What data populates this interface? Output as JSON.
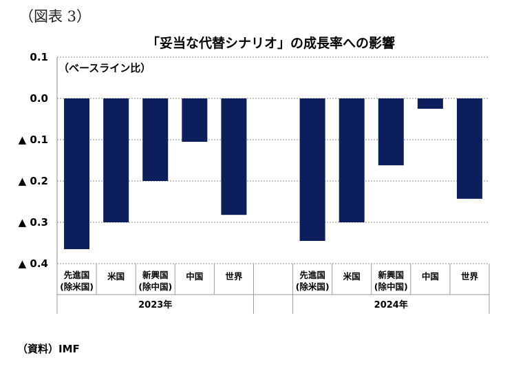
{
  "figure_label": "（図表 3）",
  "source": "（資料）IMF",
  "chart_data": {
    "type": "bar",
    "title": "「妥当な代替シナリオ」の成長率への影響",
    "unit_note": "（ベースライン比）",
    "ylim": [
      -0.4,
      0.1
    ],
    "y_ticks": [
      {
        "value": 0.1,
        "label": "0.1"
      },
      {
        "value": 0.0,
        "label": "0.0"
      },
      {
        "value": -0.1,
        "label": "▲ 0.1"
      },
      {
        "value": -0.2,
        "label": "▲ 0.2"
      },
      {
        "value": -0.3,
        "label": "▲ 0.3"
      },
      {
        "value": -0.4,
        "label": "▲ 0.4"
      }
    ],
    "grid": true,
    "bar_color": "#0d1e5c",
    "groups": [
      {
        "year": "2023年",
        "categories": [
          {
            "line1": "先進国",
            "line2": "(除米国)"
          },
          {
            "line1": "米国",
            "line2": ""
          },
          {
            "line1": "新興国",
            "line2": "(除中国)"
          },
          {
            "line1": "中国",
            "line2": ""
          },
          {
            "line1": "世界",
            "line2": ""
          }
        ],
        "values": [
          -0.365,
          -0.3,
          -0.2,
          -0.105,
          -0.282
        ]
      },
      {
        "year": "2024年",
        "categories": [
          {
            "line1": "先進国",
            "line2": "(除米国)"
          },
          {
            "line1": "米国",
            "line2": ""
          },
          {
            "line1": "新興国",
            "line2": "(除中国)"
          },
          {
            "line1": "中国",
            "line2": ""
          },
          {
            "line1": "世界",
            "line2": ""
          }
        ],
        "values": [
          -0.345,
          -0.3,
          -0.162,
          -0.025,
          -0.243
        ]
      }
    ]
  }
}
